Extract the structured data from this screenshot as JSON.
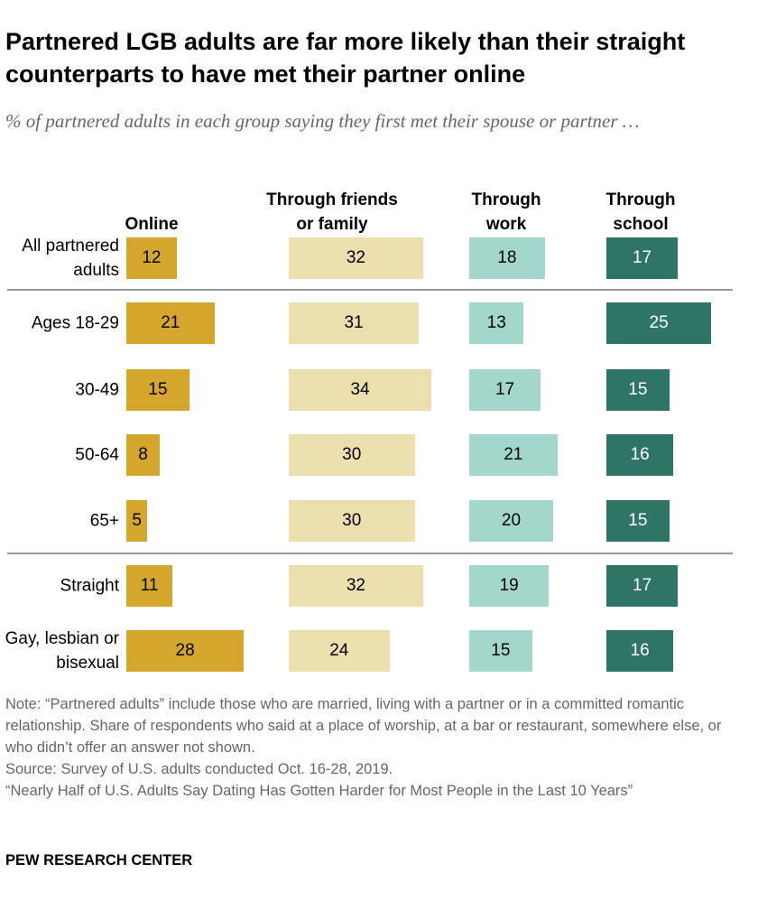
{
  "chart_data": {
    "type": "bar",
    "title": "Partnered LGB adults are far more likely than their straight counterparts to have met their partner online",
    "subtitle": "% of partnered adults in each group saying they first met their spouse or partner …",
    "categories": [
      "All partnered adults",
      "Ages 18-29",
      "30-49",
      "50-64",
      "65+",
      "Straight",
      "Gay, lesbian or bisexual"
    ],
    "series": [
      {
        "name": "Online",
        "color": "#d4a72c",
        "values": [
          12,
          21,
          15,
          8,
          5,
          11,
          28
        ]
      },
      {
        "name": "Through friends or family",
        "color": "#ecdfae",
        "values": [
          32,
          31,
          34,
          30,
          30,
          32,
          24
        ]
      },
      {
        "name": "Through work",
        "color": "#a4d7cc",
        "values": [
          18,
          13,
          17,
          21,
          20,
          19,
          15
        ]
      },
      {
        "name": "Through school",
        "color": "#2e7566",
        "values": [
          17,
          25,
          15,
          16,
          15,
          17,
          16
        ]
      }
    ],
    "notes": [
      "Note: “Partnered adults” include those who are married, living with a partner or in a committed romantic relationship. Share of respondents who said at a place of worship, at a bar or restaurant, somewhere else, or who didn’t offer an answer not shown.",
      "Source: Survey of U.S. adults conducted Oct. 16-28, 2019.",
      "“Nearly Half of U.S. Adults Say Dating Has Gotten Harder for Most People in the Last 10 Years”"
    ],
    "source": "PEW RESEARCH CENTER"
  }
}
